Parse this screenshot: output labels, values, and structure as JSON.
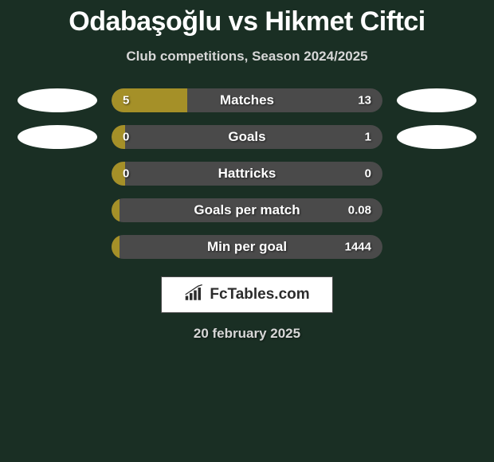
{
  "title": "Odabaşoğlu vs Hikmet Ciftci",
  "subtitle": "Club competitions, Season 2024/2025",
  "date": "20 february 2025",
  "logo_text": "FcTables.com",
  "colors": {
    "background": "#1a2f24",
    "bar_bg": "#4a4a4a",
    "bar_fill": "#a59028",
    "left_bubble_primary": "#ffffff",
    "right_bubble_primary": "#ffffff",
    "text_primary": "#ffffff",
    "text_secondary": "#d7d7d7"
  },
  "rows": [
    {
      "label": "Matches",
      "left_val": "5",
      "right_val": "13",
      "left_num": 5,
      "right_num": 13,
      "show_bubbles": true,
      "fill_pct": 27.8
    },
    {
      "label": "Goals",
      "left_val": "0",
      "right_val": "1",
      "left_num": 0,
      "right_num": 1,
      "show_bubbles": true,
      "fill_pct": 5
    },
    {
      "label": "Hattricks",
      "left_val": "0",
      "right_val": "0",
      "left_num": 0,
      "right_num": 0,
      "show_bubbles": false,
      "fill_pct": 5
    },
    {
      "label": "Goals per match",
      "left_val": "",
      "right_val": "0.08",
      "left_num": 0,
      "right_num": 0.08,
      "show_bubbles": false,
      "fill_pct": 3
    },
    {
      "label": "Min per goal",
      "left_val": "",
      "right_val": "1444",
      "left_num": 0,
      "right_num": 1444,
      "show_bubbles": false,
      "fill_pct": 3
    }
  ]
}
